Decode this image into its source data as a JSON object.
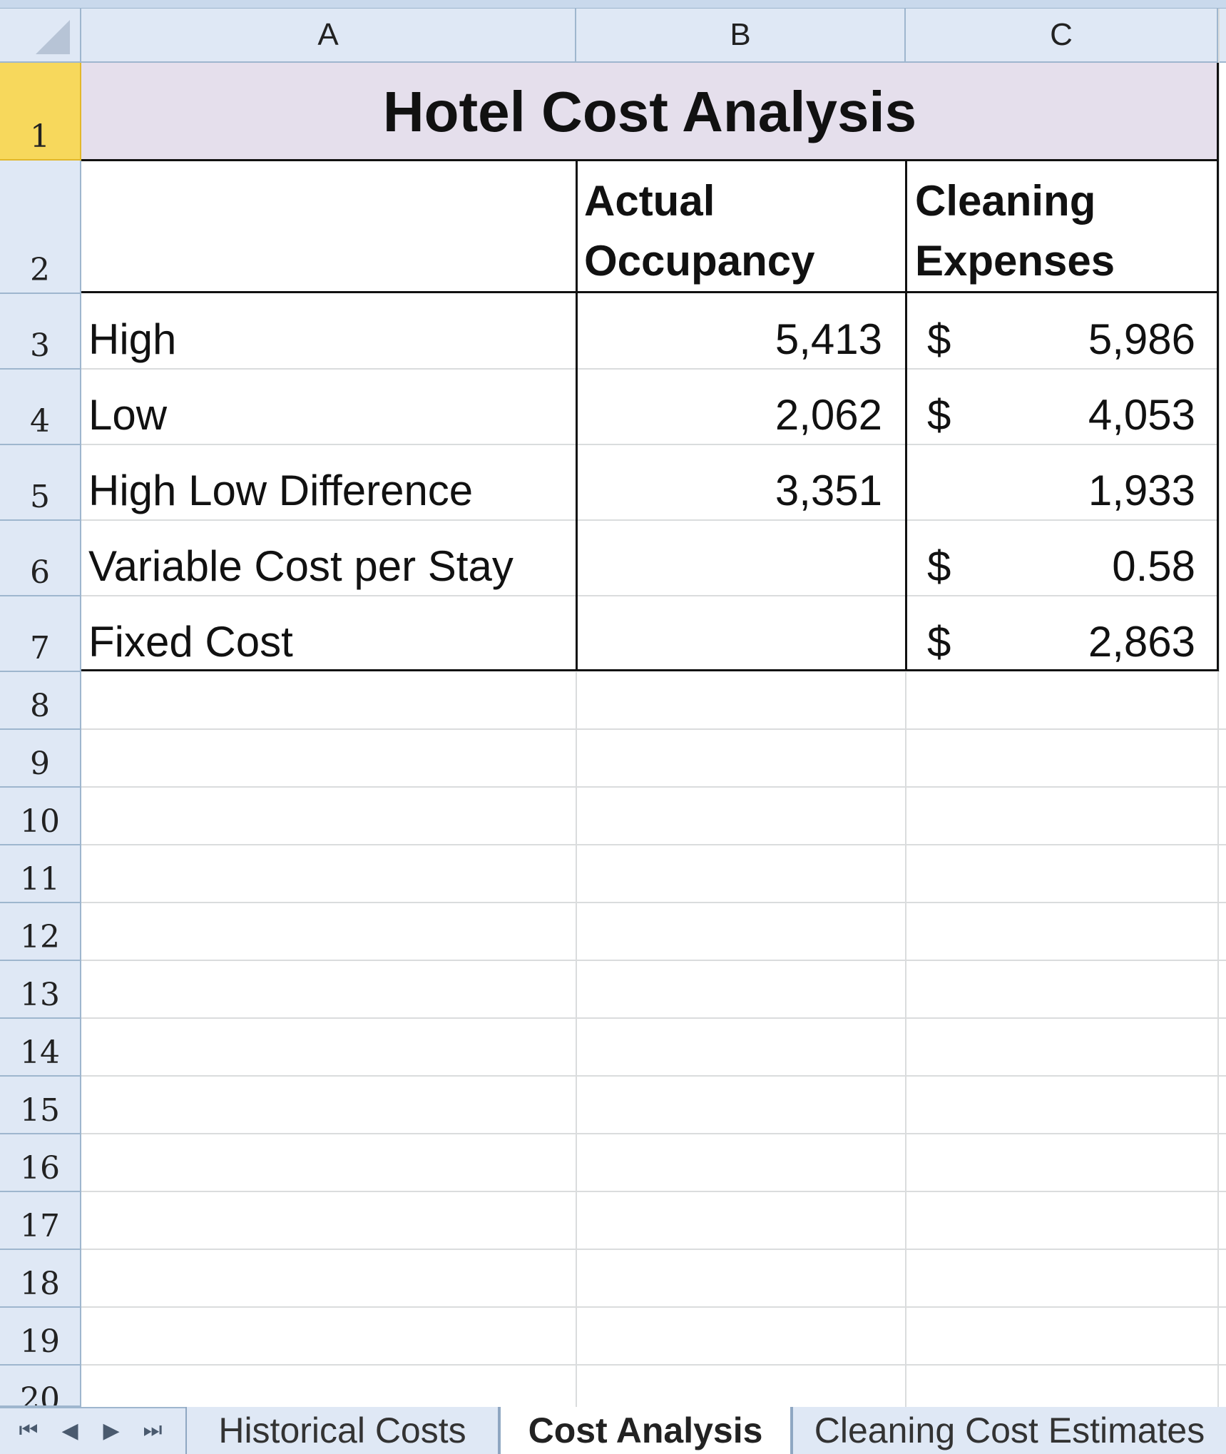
{
  "columns": [
    "A",
    "B",
    "C"
  ],
  "rows": [
    "1",
    "2",
    "3",
    "4",
    "5",
    "6",
    "7",
    "8",
    "9",
    "10",
    "11",
    "12",
    "13",
    "14",
    "15",
    "16",
    "17",
    "18",
    "19",
    "20"
  ],
  "sheet": {
    "title": "Hotel Cost Analysis",
    "header": {
      "b_line1": "Actual",
      "b_line2": "Occupancy",
      "c_line1": "Cleaning",
      "c_line2": "Expenses"
    },
    "data_rows": [
      {
        "label": "High",
        "occupancy": "5,413",
        "currency": "$",
        "expense": "5,986"
      },
      {
        "label": "Low",
        "occupancy": "2,062",
        "currency": "$",
        "expense": "4,053"
      },
      {
        "label": "High Low Difference",
        "occupancy": "3,351",
        "currency": "",
        "expense": "1,933"
      },
      {
        "label": "Variable Cost per Stay",
        "occupancy": "",
        "currency": "$",
        "expense": "0.58"
      },
      {
        "label": "Fixed Cost",
        "occupancy": "",
        "currency": "$",
        "expense": "2,863"
      }
    ]
  },
  "tabs": {
    "nav": [
      "⏮",
      "◀",
      "▶",
      "⏭"
    ],
    "sheets": [
      "Historical Costs",
      "Cost Analysis",
      "Cleaning Cost Estimates"
    ],
    "active": "Cost Analysis"
  },
  "colors": {
    "title_fill": "#e5dfec",
    "active_row_header": "#f7d85c",
    "header_fill": "#dfe8f5"
  }
}
